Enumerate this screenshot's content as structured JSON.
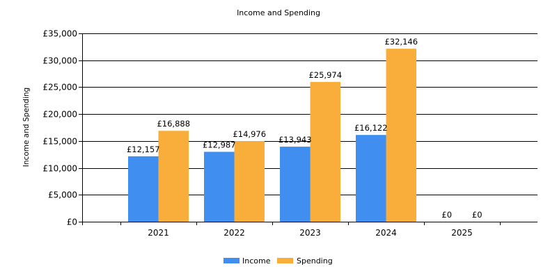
{
  "chart_data": {
    "type": "bar",
    "title": "Income and Spending",
    "xlabel": "",
    "ylabel": "Income and Spending",
    "categories": [
      "2021",
      "2022",
      "2023",
      "2024",
      "2025"
    ],
    "series": [
      {
        "name": "Income",
        "color": "#3f8ef0",
        "values": [
          12157,
          12987,
          13943,
          16122,
          0
        ],
        "labels": [
          "£12,157",
          "£12,987",
          "£13,943",
          "£16,122",
          "£0"
        ]
      },
      {
        "name": "Spending",
        "color": "#f9ae3b",
        "values": [
          16888,
          14976,
          25974,
          32146,
          0
        ],
        "labels": [
          "£16,888",
          "£14,976",
          "£25,974",
          "£32,146",
          "£0"
        ]
      }
    ],
    "ylim": [
      0,
      35000
    ],
    "yticks": [
      0,
      5000,
      10000,
      15000,
      20000,
      25000,
      30000,
      35000
    ],
    "ytick_labels": [
      "£0",
      "£5,000",
      "£10,000",
      "£15,000",
      "£20,000",
      "£25,000",
      "£30,000",
      "£35,000"
    ],
    "grid": true,
    "legend_position": "bottom-center"
  }
}
